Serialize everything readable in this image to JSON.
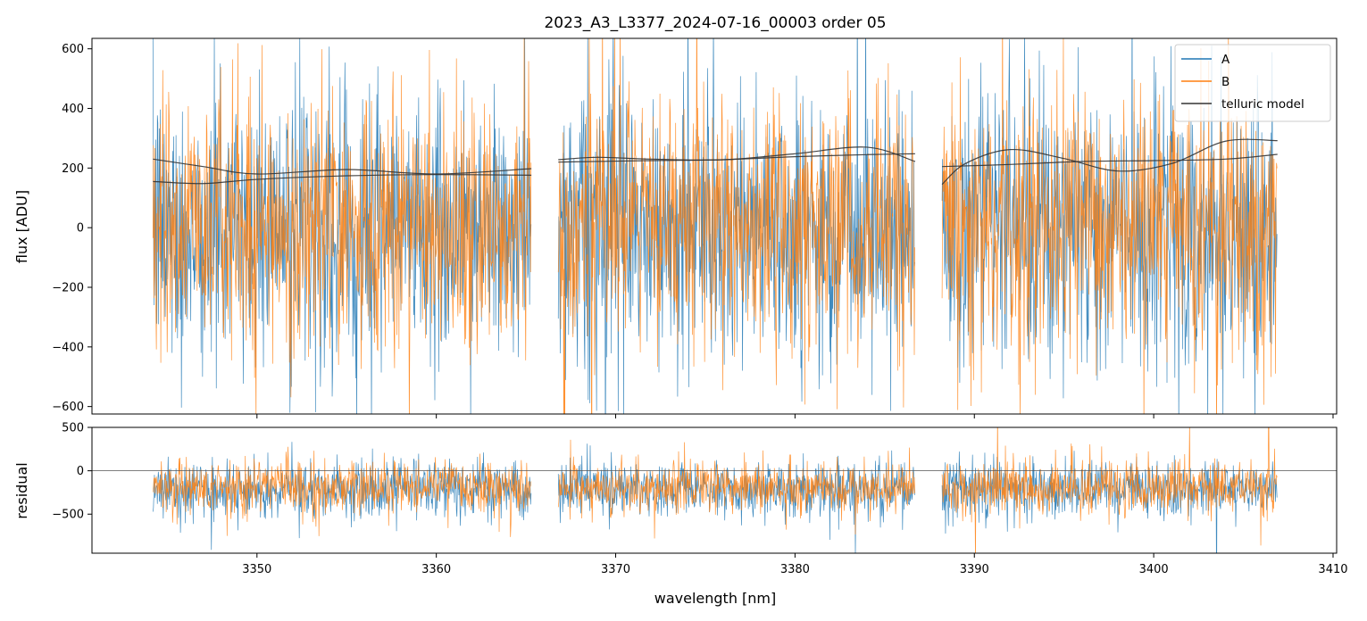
{
  "chart_data": [
    {
      "type": "line",
      "title": "2023_A3_L3377_2024-07-16_00003  order 05",
      "ylabel": "flux [ADU]",
      "xlim": [
        3340.8,
        3410.2
      ],
      "ylim": [
        -625,
        635
      ],
      "yticks": [
        -600,
        -400,
        -200,
        0,
        200,
        400,
        600
      ],
      "ytick_labels": [
        "−600",
        "−400",
        "−200",
        "0",
        "200",
        "400",
        "600"
      ],
      "legend": {
        "placement": "top-right",
        "entries": [
          "A",
          "B",
          "telluric model"
        ]
      },
      "segments_x": [
        [
          3344.2,
          3365.3
        ],
        [
          3366.8,
          3386.7
        ],
        [
          3388.2,
          3406.9
        ]
      ],
      "series": [
        {
          "name": "A",
          "color": "#1f77b4",
          "noise_mean": 0,
          "noise_std": 230
        },
        {
          "name": "B",
          "color": "#ff7f0e",
          "noise_mean": 0,
          "noise_std": 215
        },
        {
          "name": "telluric model",
          "color": "#333333",
          "curves": [
            {
              "x": [
                3344.2,
                3347,
                3350,
                3355,
                3360,
                3365.3
              ],
              "y": [
                230,
                205,
                180,
                195,
                180,
                198
              ]
            },
            {
              "x": [
                3344.2,
                3347,
                3350,
                3355,
                3360,
                3365.3
              ],
              "y": [
                155,
                148,
                162,
                174,
                178,
                176
              ]
            },
            {
              "x": [
                3366.8,
                3369,
                3372,
                3376,
                3380,
                3384,
                3386.7
              ],
              "y": [
                228,
                236,
                230,
                228,
                248,
                270,
                222
              ]
            },
            {
              "x": [
                3366.8,
                3372,
                3376,
                3380,
                3384,
                3386.7
              ],
              "y": [
                220,
                225,
                228,
                238,
                245,
                248
              ]
            },
            {
              "x": [
                3388.2,
                3389.5,
                3392,
                3395,
                3398,
                3401,
                3404,
                3406.9
              ],
              "y": [
                145,
                215,
                262,
                232,
                190,
                215,
                290,
                292
              ]
            },
            {
              "x": [
                3388.2,
                3392,
                3396,
                3400,
                3404,
                3406.9
              ],
              "y": [
                205,
                212,
                222,
                225,
                230,
                246
              ]
            }
          ]
        }
      ]
    },
    {
      "type": "line",
      "ylabel": "residual",
      "xlabel": "wavelength [nm]",
      "xlim": [
        3340.8,
        3410.2
      ],
      "ylim": [
        -950,
        500
      ],
      "xticks": [
        3350,
        3360,
        3370,
        3380,
        3390,
        3400,
        3410
      ],
      "xtick_labels": [
        "3350",
        "3360",
        "3370",
        "3380",
        "3390",
        "3400",
        "3410"
      ],
      "yticks": [
        -500,
        0,
        500
      ],
      "ytick_labels": [
        "−500",
        "0",
        "500"
      ],
      "reference_line_y": 0,
      "series": [
        {
          "name": "A",
          "color": "#1f77b4",
          "noise_mean": -210,
          "noise_std": 160
        },
        {
          "name": "B",
          "color": "#ff7f0e",
          "noise_mean": -190,
          "noise_std": 150
        }
      ]
    }
  ]
}
